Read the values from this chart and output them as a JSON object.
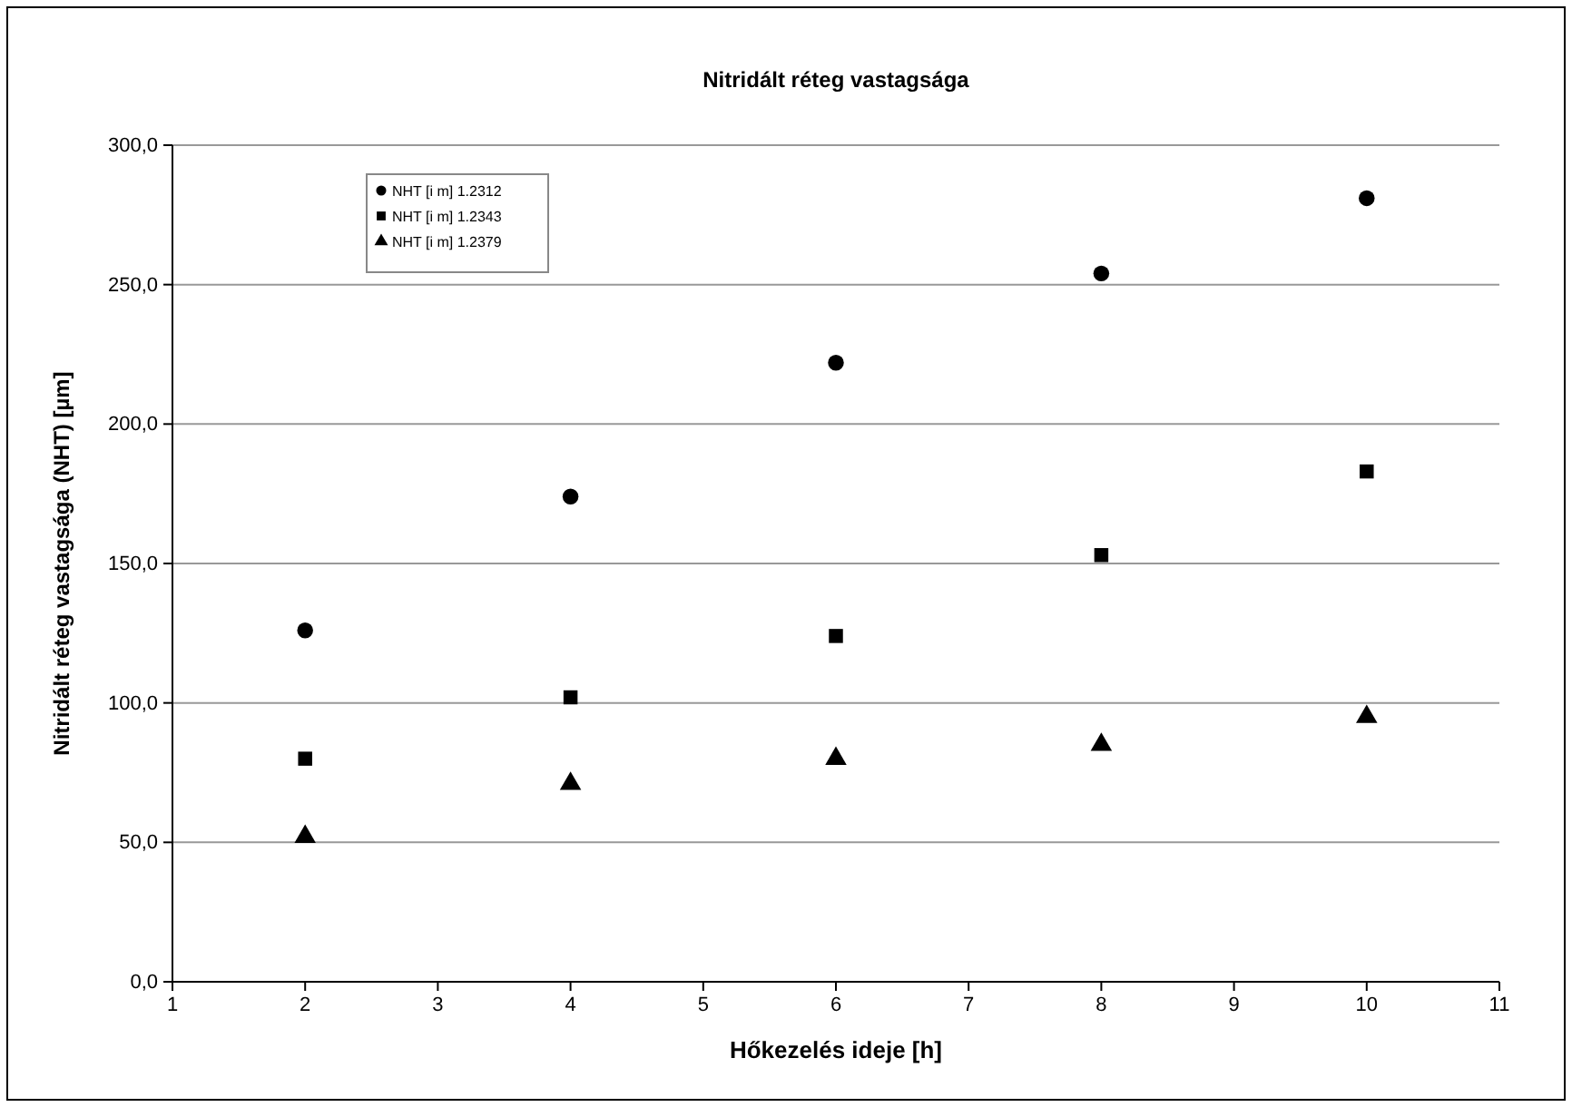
{
  "chart_data": {
    "type": "scatter",
    "title": "Nitridált réteg vastagsága",
    "xlabel": "Hőkezelés ideje [h]",
    "ylabel": "Nitridált réteg vastagsága (NHT) [µm]",
    "x": [
      2,
      4,
      6,
      8,
      10
    ],
    "series": [
      {
        "name": "NHT [i m] 1.2312",
        "color": "#000000",
        "marker": "circle",
        "values": [
          126,
          174,
          222,
          254,
          281
        ]
      },
      {
        "name": "NHT [i m] 1.2343",
        "color": "#000000",
        "marker": "square",
        "values": [
          80,
          102,
          124,
          153,
          183
        ]
      },
      {
        "name": "NHT [i m] 1.2379",
        "color": "#000000",
        "marker": "triangle",
        "values": [
          52,
          71,
          80,
          85,
          95
        ]
      }
    ],
    "xlim": [
      1,
      11
    ],
    "xticks": [
      1,
      2,
      3,
      4,
      5,
      6,
      7,
      8,
      9,
      10,
      11
    ],
    "ylim": [
      0,
      300
    ],
    "yticks": [
      {
        "value": 0,
        "label": "0,0"
      },
      {
        "value": 50,
        "label": "50,0"
      },
      {
        "value": 100,
        "label": "100,0"
      },
      {
        "value": 150,
        "label": "150,0"
      },
      {
        "value": 200,
        "label": "200,0"
      },
      {
        "value": 250,
        "label": "250,0"
      },
      {
        "value": 300,
        "label": "300,0"
      }
    ],
    "grid": "y",
    "legend": "top left"
  }
}
